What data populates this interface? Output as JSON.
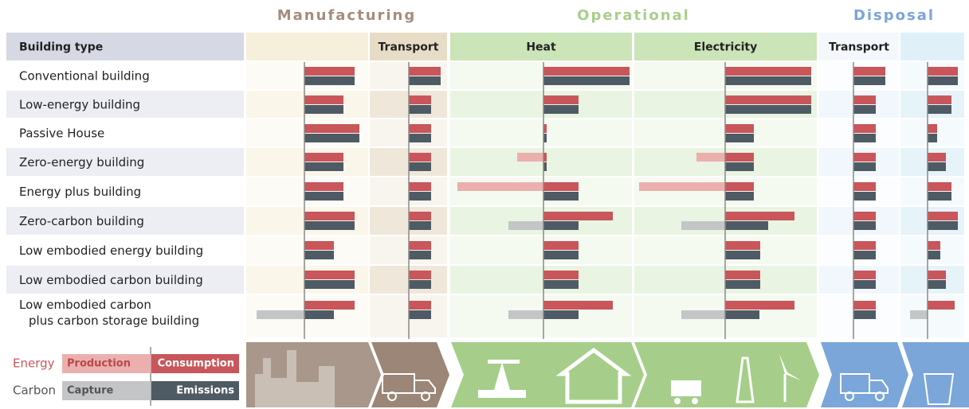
{
  "chart_data": {
    "type": "bar",
    "stages": [
      {
        "title": "Manufacturing",
        "color": "#a48d7c"
      },
      {
        "title": "Operational",
        "color": "#a7cf8a"
      },
      {
        "title": "Disposal",
        "color": "#7ba5d8"
      }
    ],
    "header_label": "Building type",
    "categories": [
      "Conventional building",
      "Low-energy building",
      "Passive House",
      "Zero-energy building",
      "Energy plus building",
      "Zero-carbon building",
      "Low embodied energy building",
      "Low embodied carbon building",
      "Low embodied carbon\nplus carbon storage building"
    ],
    "columns": [
      {
        "energy_consumption": [
          63,
          49,
          69,
          49,
          49,
          63,
          37,
          63,
          63
        ],
        "energy_production": [
          null,
          null,
          null,
          null,
          null,
          null,
          null,
          null,
          null
        ],
        "carbon_emissions": [
          63,
          49,
          69,
          49,
          49,
          63,
          37,
          63,
          37
        ],
        "carbon_capture": [
          null,
          null,
          null,
          null,
          null,
          null,
          null,
          null,
          -60
        ]
      },
      {
        "title": "Transport",
        "energy_consumption": [
          40,
          28,
          28,
          28,
          28,
          28,
          28,
          28,
          28
        ],
        "energy_production": [
          null,
          null,
          null,
          null,
          null,
          null,
          null,
          null,
          null
        ],
        "carbon_emissions": [
          40,
          28,
          28,
          28,
          28,
          28,
          28,
          28,
          28
        ],
        "carbon_capture": [
          null,
          null,
          null,
          null,
          null,
          null,
          null,
          null,
          null
        ]
      },
      {
        "title": "Heat",
        "energy_consumption": [
          108,
          44,
          4,
          4,
          44,
          87,
          44,
          44,
          87
        ],
        "energy_production": [
          null,
          null,
          null,
          -33,
          -108,
          null,
          null,
          null,
          null
        ],
        "carbon_emissions": [
          108,
          44,
          4,
          4,
          44,
          44,
          44,
          44,
          44
        ],
        "carbon_capture": [
          null,
          null,
          null,
          null,
          null,
          -44,
          null,
          null,
          -44
        ]
      },
      {
        "title": "Electricity",
        "energy_consumption": [
          108,
          108,
          36,
          36,
          36,
          87,
          44,
          44,
          87
        ],
        "energy_production": [
          null,
          null,
          null,
          -36,
          -108,
          null,
          null,
          null,
          null
        ],
        "carbon_emissions": [
          108,
          108,
          36,
          36,
          36,
          54,
          44,
          44,
          43
        ],
        "carbon_capture": [
          null,
          null,
          null,
          null,
          null,
          -55,
          null,
          null,
          -55
        ]
      },
      {
        "title": "Transport",
        "energy_consumption": [
          40,
          28,
          28,
          28,
          28,
          28,
          28,
          28,
          28
        ],
        "energy_production": [
          null,
          null,
          null,
          null,
          null,
          null,
          null,
          null,
          null
        ],
        "carbon_emissions": [
          40,
          28,
          28,
          28,
          28,
          28,
          28,
          28,
          28
        ],
        "carbon_capture": [
          null,
          null,
          null,
          null,
          null,
          null,
          null,
          null,
          null
        ]
      },
      {
        "energy_consumption": [
          38,
          30,
          12,
          23,
          30,
          38,
          16,
          23,
          34
        ],
        "energy_production": [
          null,
          null,
          null,
          null,
          null,
          null,
          null,
          null,
          null
        ],
        "carbon_emissions": [
          38,
          30,
          12,
          23,
          30,
          38,
          16,
          23,
          null
        ],
        "carbon_capture": [
          null,
          null,
          null,
          null,
          null,
          null,
          null,
          null,
          -22
        ]
      }
    ],
    "legend": {
      "energy": "Energy",
      "carbon": "Carbon",
      "production": "Production",
      "consumption": "Consumption",
      "capture": "Capture",
      "emissions": "Emissions"
    },
    "colors": {
      "consumption": "#c8565a",
      "production": "#ebb0ae",
      "emissions": "#4f5b64",
      "capture": "#c3c5c7"
    }
  }
}
